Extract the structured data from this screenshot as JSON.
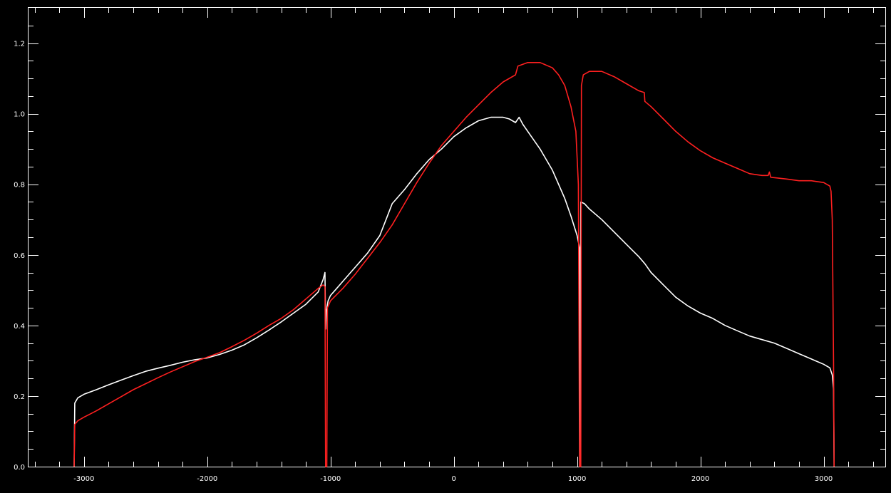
{
  "chart_data": {
    "type": "line",
    "title": "",
    "xlabel": "",
    "ylabel": "",
    "xlim": [
      -3450,
      3500
    ],
    "ylim": [
      0.0,
      1.3
    ],
    "grid": false,
    "x_ticks": [
      -3000,
      -2000,
      -1000,
      0,
      1000,
      2000,
      3000
    ],
    "x_tick_labels": [
      "-3000",
      "-2000",
      "-1000",
      "0",
      "1000",
      "2000",
      "3000"
    ],
    "y_ticks": [
      0.0,
      0.2,
      0.4,
      0.6,
      0.8,
      1.0,
      1.2
    ],
    "y_tick_labels": [
      "0.0",
      "0.2",
      "0.4",
      "0.6",
      "0.8",
      "1.0",
      "1.2"
    ],
    "series": [
      {
        "color": "#ffffff",
        "points": [
          [
            -3080,
            0.0
          ],
          [
            -3075,
            0.18
          ],
          [
            -3050,
            0.195
          ],
          [
            -3000,
            0.205
          ],
          [
            -2900,
            0.218
          ],
          [
            -2800,
            0.232
          ],
          [
            -2700,
            0.245
          ],
          [
            -2600,
            0.258
          ],
          [
            -2500,
            0.27
          ],
          [
            -2400,
            0.279
          ],
          [
            -2300,
            0.287
          ],
          [
            -2200,
            0.296
          ],
          [
            -2100,
            0.303
          ],
          [
            -2000,
            0.308
          ],
          [
            -1900,
            0.318
          ],
          [
            -1800,
            0.33
          ],
          [
            -1700,
            0.345
          ],
          [
            -1600,
            0.365
          ],
          [
            -1500,
            0.387
          ],
          [
            -1400,
            0.41
          ],
          [
            -1300,
            0.435
          ],
          [
            -1200,
            0.46
          ],
          [
            -1100,
            0.495
          ],
          [
            -1060,
            0.53
          ],
          [
            -1045,
            0.55
          ],
          [
            -1040,
            0.39
          ],
          [
            -1035,
            0.44
          ],
          [
            -1020,
            0.47
          ],
          [
            -1000,
            0.485
          ],
          [
            -950,
            0.505
          ],
          [
            -900,
            0.525
          ],
          [
            -800,
            0.565
          ],
          [
            -700,
            0.605
          ],
          [
            -600,
            0.655
          ],
          [
            -550,
            0.7
          ],
          [
            -500,
            0.745
          ],
          [
            -400,
            0.785
          ],
          [
            -300,
            0.83
          ],
          [
            -200,
            0.87
          ],
          [
            -100,
            0.9
          ],
          [
            0,
            0.935
          ],
          [
            100,
            0.96
          ],
          [
            200,
            0.98
          ],
          [
            300,
            0.99
          ],
          [
            400,
            0.99
          ],
          [
            450,
            0.985
          ],
          [
            500,
            0.975
          ],
          [
            530,
            0.99
          ],
          [
            560,
            0.97
          ],
          [
            600,
            0.95
          ],
          [
            700,
            0.9
          ],
          [
            800,
            0.84
          ],
          [
            900,
            0.76
          ],
          [
            950,
            0.71
          ],
          [
            1000,
            0.655
          ],
          [
            1020,
            0.62
          ],
          [
            1025,
            0.0
          ],
          [
            1030,
            0.75
          ],
          [
            1060,
            0.745
          ],
          [
            1100,
            0.73
          ],
          [
            1200,
            0.7
          ],
          [
            1300,
            0.665
          ],
          [
            1400,
            0.63
          ],
          [
            1500,
            0.595
          ],
          [
            1550,
            0.575
          ],
          [
            1600,
            0.55
          ],
          [
            1700,
            0.515
          ],
          [
            1800,
            0.48
          ],
          [
            1900,
            0.455
          ],
          [
            2000,
            0.435
          ],
          [
            2100,
            0.42
          ],
          [
            2200,
            0.4
          ],
          [
            2300,
            0.385
          ],
          [
            2400,
            0.37
          ],
          [
            2500,
            0.36
          ],
          [
            2600,
            0.35
          ],
          [
            2700,
            0.335
          ],
          [
            2800,
            0.32
          ],
          [
            2900,
            0.305
          ],
          [
            3000,
            0.29
          ],
          [
            3050,
            0.28
          ],
          [
            3070,
            0.26
          ],
          [
            3080,
            0.22
          ],
          [
            3085,
            0.0
          ]
        ]
      },
      {
        "color": "#ff2020",
        "points": [
          [
            -3080,
            0.0
          ],
          [
            -3075,
            0.12
          ],
          [
            -3050,
            0.13
          ],
          [
            -3000,
            0.14
          ],
          [
            -2900,
            0.158
          ],
          [
            -2800,
            0.178
          ],
          [
            -2700,
            0.198
          ],
          [
            -2600,
            0.218
          ],
          [
            -2500,
            0.235
          ],
          [
            -2400,
            0.252
          ],
          [
            -2300,
            0.268
          ],
          [
            -2200,
            0.283
          ],
          [
            -2100,
            0.298
          ],
          [
            -2000,
            0.31
          ],
          [
            -1900,
            0.323
          ],
          [
            -1800,
            0.34
          ],
          [
            -1700,
            0.358
          ],
          [
            -1600,
            0.378
          ],
          [
            -1500,
            0.4
          ],
          [
            -1400,
            0.42
          ],
          [
            -1300,
            0.445
          ],
          [
            -1200,
            0.475
          ],
          [
            -1100,
            0.505
          ],
          [
            -1060,
            0.515
          ],
          [
            -1045,
            0.51
          ],
          [
            -1040,
            0.0
          ],
          [
            -1030,
            0.0
          ],
          [
            -1025,
            0.45
          ],
          [
            -1000,
            0.47
          ],
          [
            -900,
            0.505
          ],
          [
            -800,
            0.545
          ],
          [
            -700,
            0.59
          ],
          [
            -600,
            0.635
          ],
          [
            -500,
            0.685
          ],
          [
            -400,
            0.745
          ],
          [
            -300,
            0.805
          ],
          [
            -200,
            0.86
          ],
          [
            -100,
            0.91
          ],
          [
            0,
            0.95
          ],
          [
            100,
            0.99
          ],
          [
            200,
            1.025
          ],
          [
            300,
            1.06
          ],
          [
            400,
            1.09
          ],
          [
            500,
            1.11
          ],
          [
            520,
            1.135
          ],
          [
            600,
            1.145
          ],
          [
            700,
            1.145
          ],
          [
            800,
            1.13
          ],
          [
            850,
            1.11
          ],
          [
            900,
            1.08
          ],
          [
            950,
            1.02
          ],
          [
            990,
            0.95
          ],
          [
            1010,
            0.8
          ],
          [
            1020,
            0.0
          ],
          [
            1030,
            0.0
          ],
          [
            1035,
            1.08
          ],
          [
            1050,
            1.11
          ],
          [
            1100,
            1.12
          ],
          [
            1200,
            1.12
          ],
          [
            1300,
            1.105
          ],
          [
            1400,
            1.085
          ],
          [
            1500,
            1.065
          ],
          [
            1545,
            1.06
          ],
          [
            1550,
            1.035
          ],
          [
            1600,
            1.02
          ],
          [
            1700,
            0.985
          ],
          [
            1800,
            0.95
          ],
          [
            1900,
            0.92
          ],
          [
            2000,
            0.895
          ],
          [
            2100,
            0.875
          ],
          [
            2200,
            0.86
          ],
          [
            2300,
            0.845
          ],
          [
            2400,
            0.83
          ],
          [
            2500,
            0.825
          ],
          [
            2550,
            0.825
          ],
          [
            2560,
            0.835
          ],
          [
            2570,
            0.82
          ],
          [
            2700,
            0.815
          ],
          [
            2800,
            0.81
          ],
          [
            2900,
            0.81
          ],
          [
            3000,
            0.805
          ],
          [
            3050,
            0.795
          ],
          [
            3060,
            0.78
          ],
          [
            3070,
            0.7
          ],
          [
            3080,
            0.3
          ],
          [
            3085,
            0.0
          ]
        ]
      }
    ]
  }
}
